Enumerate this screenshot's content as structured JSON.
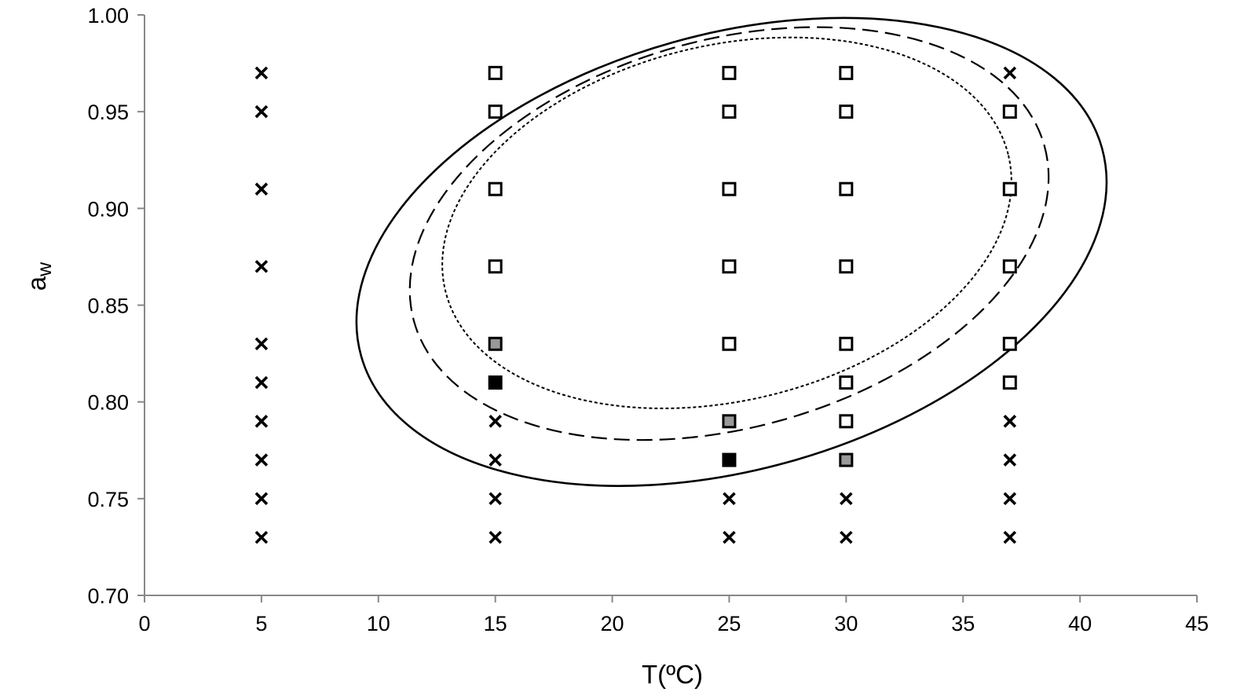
{
  "chart_data": {
    "type": "scatter",
    "title": "",
    "xlabel": "T(ºC)",
    "ylabel_main": "a",
    "ylabel_sub": "w",
    "xlim": [
      0,
      45
    ],
    "ylim": [
      0.7,
      1.0
    ],
    "xticks": [
      "0",
      "5",
      "10",
      "15",
      "20",
      "25",
      "30",
      "35",
      "40",
      "45"
    ],
    "yticks": [
      "0.70",
      "0.75",
      "0.80",
      "0.85",
      "0.90",
      "0.95",
      "1.00"
    ],
    "grid": false,
    "legend": "none",
    "series": [
      {
        "marker": "cross",
        "color": "#000000",
        "points": [
          [
            5,
            0.97
          ],
          [
            5,
            0.95
          ],
          [
            5,
            0.91
          ],
          [
            5,
            0.87
          ],
          [
            5,
            0.83
          ],
          [
            5,
            0.81
          ],
          [
            5,
            0.79
          ],
          [
            5,
            0.77
          ],
          [
            5,
            0.75
          ],
          [
            5,
            0.73
          ],
          [
            15,
            0.79
          ],
          [
            15,
            0.77
          ],
          [
            15,
            0.75
          ],
          [
            15,
            0.73
          ],
          [
            25,
            0.75
          ],
          [
            25,
            0.73
          ],
          [
            30,
            0.75
          ],
          [
            30,
            0.73
          ],
          [
            37,
            0.97
          ],
          [
            37,
            0.79
          ],
          [
            37,
            0.77
          ],
          [
            37,
            0.75
          ],
          [
            37,
            0.73
          ]
        ]
      },
      {
        "marker": "open-square",
        "color": "#000000",
        "points": [
          [
            15,
            0.97
          ],
          [
            15,
            0.95
          ],
          [
            15,
            0.91
          ],
          [
            15,
            0.87
          ],
          [
            25,
            0.97
          ],
          [
            25,
            0.95
          ],
          [
            25,
            0.91
          ],
          [
            25,
            0.87
          ],
          [
            25,
            0.83
          ],
          [
            30,
            0.97
          ],
          [
            30,
            0.95
          ],
          [
            30,
            0.91
          ],
          [
            30,
            0.87
          ],
          [
            30,
            0.83
          ],
          [
            30,
            0.81
          ],
          [
            30,
            0.79
          ],
          [
            37,
            0.95
          ],
          [
            37,
            0.91
          ],
          [
            37,
            0.87
          ],
          [
            37,
            0.83
          ],
          [
            37,
            0.81
          ]
        ]
      },
      {
        "marker": "grey-square",
        "color": "#999999",
        "points": [
          [
            15,
            0.83
          ],
          [
            25,
            0.79
          ],
          [
            30,
            0.77
          ]
        ]
      },
      {
        "marker": "filled-square",
        "color": "#000000",
        "points": [
          [
            15,
            0.81
          ],
          [
            25,
            0.77
          ]
        ]
      }
    ],
    "curves": [
      {
        "style": "solid",
        "center": [
          25.1,
          0.8775
        ],
        "radius_x": 16.45,
        "radius_y": 0.1125,
        "rotation_deg": -15.7
      },
      {
        "style": "dashed",
        "center": [
          25.0,
          0.887
        ],
        "radius_x": 13.99,
        "radius_y": 0.1002,
        "rotation_deg": -15.6
      },
      {
        "style": "dotted",
        "center": [
          24.9,
          0.8925
        ],
        "radius_x": 12.38,
        "radius_y": 0.0918,
        "rotation_deg": -13.5
      }
    ]
  }
}
